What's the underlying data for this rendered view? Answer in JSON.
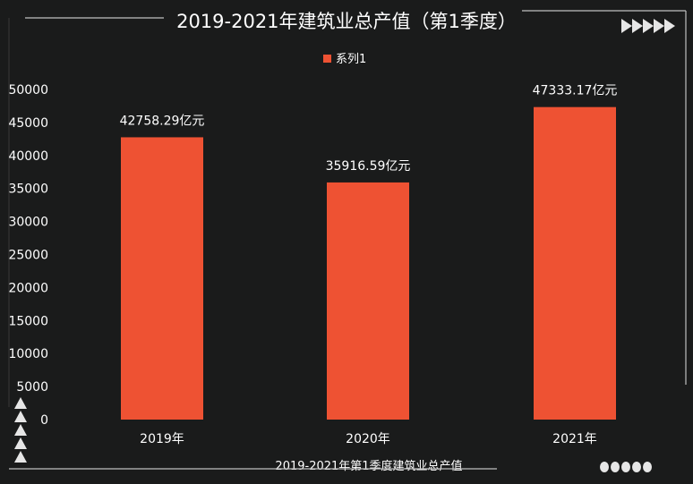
{
  "chart_data": {
    "type": "bar",
    "title": "2019-2021年建筑业总产值（第1季度）",
    "subtitle": "2019-2021年第1季度建筑业总产值",
    "categories": [
      "2019年",
      "2020年",
      "2021年"
    ],
    "series": [
      {
        "name": "系列1",
        "values": [
          42758.29,
          35916.59,
          47333.17
        ],
        "data_labels": [
          "42758.29亿元",
          "35916.59亿元",
          "47333.17亿元"
        ]
      }
    ],
    "ylim": [
      0,
      50000
    ],
    "yticks": [
      0,
      5000,
      10000,
      15000,
      20000,
      25000,
      30000,
      35000,
      40000,
      45000,
      50000
    ],
    "ytick_labels": [
      "0",
      "5000",
      "10000",
      "15000",
      "20000",
      "25000",
      "30000",
      "35000",
      "40000",
      "45000",
      "50000"
    ],
    "legend_position": "top-center",
    "grid": false,
    "colors": {
      "background": "#1a1b1b",
      "bar": "#ee5233",
      "text": "#ffffff",
      "decor": "#bfbfbf"
    }
  }
}
